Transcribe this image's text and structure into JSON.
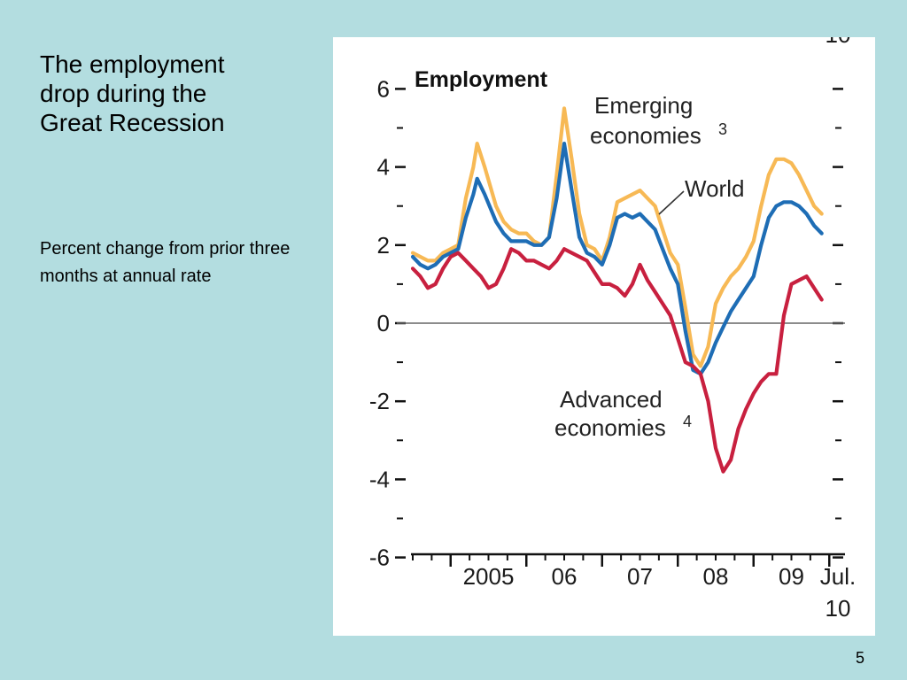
{
  "slide": {
    "title": "The employment\ndrop during the\nGreat Recession",
    "subtitle": "Percent change from prior three months at annual rate",
    "page_number": "5"
  },
  "chart_data": {
    "type": "line",
    "title": "Employment",
    "ylim": [
      -6,
      6
    ],
    "xlim": [
      2004.5,
      2010.5
    ],
    "y_ticks": [
      {
        "value": 6,
        "label": "6"
      },
      {
        "value": 4,
        "label": "4"
      },
      {
        "value": 2,
        "label": "2"
      },
      {
        "value": 0,
        "label": "0"
      },
      {
        "value": -2,
        "label": "-2"
      },
      {
        "value": -4,
        "label": "-4"
      },
      {
        "value": -6,
        "label": "-6"
      }
    ],
    "x_ticks": [
      {
        "value": 2005,
        "label": "2005"
      },
      {
        "value": 2006,
        "label": "06"
      },
      {
        "value": 2007,
        "label": "07"
      },
      {
        "value": 2008,
        "label": "08"
      },
      {
        "value": 2009,
        "label": "09"
      },
      {
        "value": 2010,
        "label": "Jul.",
        "label2": "10"
      }
    ],
    "top_right_label": "10",
    "zero_line": true,
    "grid": false,
    "series": [
      {
        "name": "Emerging economies",
        "superscript": "3",
        "label": "Emerging",
        "label2": "economies",
        "color": "#f7b955",
        "points": [
          [
            2004.5,
            1.8
          ],
          [
            2004.6,
            1.7
          ],
          [
            2004.7,
            1.6
          ],
          [
            2004.8,
            1.6
          ],
          [
            2004.9,
            1.8
          ],
          [
            2005.0,
            1.9
          ],
          [
            2005.1,
            2.0
          ],
          [
            2005.2,
            3.2
          ],
          [
            2005.3,
            4.0
          ],
          [
            2005.35,
            4.6
          ],
          [
            2005.45,
            4.0
          ],
          [
            2005.6,
            3.0
          ],
          [
            2005.7,
            2.6
          ],
          [
            2005.8,
            2.4
          ],
          [
            2005.9,
            2.3
          ],
          [
            2006.0,
            2.3
          ],
          [
            2006.1,
            2.1
          ],
          [
            2006.2,
            2.0
          ],
          [
            2006.3,
            2.2
          ],
          [
            2006.4,
            3.8
          ],
          [
            2006.5,
            5.5
          ],
          [
            2006.6,
            4.2
          ],
          [
            2006.7,
            2.8
          ],
          [
            2006.8,
            2.0
          ],
          [
            2006.9,
            1.9
          ],
          [
            2007.0,
            1.6
          ],
          [
            2007.1,
            2.2
          ],
          [
            2007.2,
            3.1
          ],
          [
            2007.3,
            3.2
          ],
          [
            2007.4,
            3.3
          ],
          [
            2007.5,
            3.4
          ],
          [
            2007.6,
            3.2
          ],
          [
            2007.7,
            3.0
          ],
          [
            2007.8,
            2.4
          ],
          [
            2007.9,
            1.8
          ],
          [
            2008.0,
            1.5
          ],
          [
            2008.1,
            0.4
          ],
          [
            2008.2,
            -0.8
          ],
          [
            2008.3,
            -1.1
          ],
          [
            2008.4,
            -0.6
          ],
          [
            2008.5,
            0.5
          ],
          [
            2008.6,
            0.9
          ],
          [
            2008.7,
            1.2
          ],
          [
            2008.8,
            1.4
          ],
          [
            2008.9,
            1.7
          ],
          [
            2009.0,
            2.1
          ],
          [
            2009.1,
            3.0
          ],
          [
            2009.2,
            3.8
          ],
          [
            2009.3,
            4.2
          ],
          [
            2009.4,
            4.2
          ],
          [
            2009.5,
            4.1
          ],
          [
            2009.6,
            3.8
          ],
          [
            2009.7,
            3.4
          ],
          [
            2009.8,
            3.0
          ],
          [
            2009.9,
            2.8
          ]
        ]
      },
      {
        "name": "World",
        "superscript": "",
        "label": "World",
        "label2": "",
        "color": "#1e6db5",
        "points": [
          [
            2004.5,
            1.7
          ],
          [
            2004.6,
            1.5
          ],
          [
            2004.7,
            1.4
          ],
          [
            2004.8,
            1.5
          ],
          [
            2004.9,
            1.7
          ],
          [
            2005.0,
            1.8
          ],
          [
            2005.1,
            1.9
          ],
          [
            2005.2,
            2.7
          ],
          [
            2005.3,
            3.3
          ],
          [
            2005.35,
            3.7
          ],
          [
            2005.45,
            3.3
          ],
          [
            2005.6,
            2.6
          ],
          [
            2005.7,
            2.3
          ],
          [
            2005.8,
            2.1
          ],
          [
            2005.9,
            2.1
          ],
          [
            2006.0,
            2.1
          ],
          [
            2006.1,
            2.0
          ],
          [
            2006.2,
            2.0
          ],
          [
            2006.3,
            2.2
          ],
          [
            2006.4,
            3.2
          ],
          [
            2006.5,
            4.6
          ],
          [
            2006.6,
            3.4
          ],
          [
            2006.7,
            2.2
          ],
          [
            2006.8,
            1.8
          ],
          [
            2006.9,
            1.7
          ],
          [
            2007.0,
            1.5
          ],
          [
            2007.1,
            2.0
          ],
          [
            2007.2,
            2.7
          ],
          [
            2007.3,
            2.8
          ],
          [
            2007.4,
            2.7
          ],
          [
            2007.5,
            2.8
          ],
          [
            2007.6,
            2.6
          ],
          [
            2007.7,
            2.4
          ],
          [
            2007.8,
            1.9
          ],
          [
            2007.9,
            1.4
          ],
          [
            2008.0,
            1.0
          ],
          [
            2008.1,
            -0.2
          ],
          [
            2008.2,
            -1.2
          ],
          [
            2008.3,
            -1.3
          ],
          [
            2008.4,
            -1.0
          ],
          [
            2008.5,
            -0.5
          ],
          [
            2008.6,
            -0.1
          ],
          [
            2008.7,
            0.3
          ],
          [
            2008.8,
            0.6
          ],
          [
            2008.9,
            0.9
          ],
          [
            2009.0,
            1.2
          ],
          [
            2009.1,
            2.0
          ],
          [
            2009.2,
            2.7
          ],
          [
            2009.3,
            3.0
          ],
          [
            2009.4,
            3.1
          ],
          [
            2009.5,
            3.1
          ],
          [
            2009.6,
            3.0
          ],
          [
            2009.7,
            2.8
          ],
          [
            2009.8,
            2.5
          ],
          [
            2009.9,
            2.3
          ]
        ]
      },
      {
        "name": "Advanced economies",
        "superscript": "4",
        "label": "Advanced",
        "label2": "economies",
        "color": "#c8203f",
        "points": [
          [
            2004.5,
            1.4
          ],
          [
            2004.6,
            1.2
          ],
          [
            2004.7,
            0.9
          ],
          [
            2004.8,
            1.0
          ],
          [
            2004.9,
            1.4
          ],
          [
            2005.0,
            1.7
          ],
          [
            2005.1,
            1.8
          ],
          [
            2005.2,
            1.6
          ],
          [
            2005.3,
            1.4
          ],
          [
            2005.4,
            1.2
          ],
          [
            2005.5,
            0.9
          ],
          [
            2005.6,
            1.0
          ],
          [
            2005.7,
            1.4
          ],
          [
            2005.8,
            1.9
          ],
          [
            2005.9,
            1.8
          ],
          [
            2006.0,
            1.6
          ],
          [
            2006.1,
            1.6
          ],
          [
            2006.2,
            1.5
          ],
          [
            2006.3,
            1.4
          ],
          [
            2006.4,
            1.6
          ],
          [
            2006.5,
            1.9
          ],
          [
            2006.6,
            1.8
          ],
          [
            2006.7,
            1.7
          ],
          [
            2006.8,
            1.6
          ],
          [
            2006.9,
            1.3
          ],
          [
            2007.0,
            1.0
          ],
          [
            2007.1,
            1.0
          ],
          [
            2007.2,
            0.9
          ],
          [
            2007.3,
            0.7
          ],
          [
            2007.4,
            1.0
          ],
          [
            2007.5,
            1.5
          ],
          [
            2007.6,
            1.1
          ],
          [
            2007.7,
            0.8
          ],
          [
            2007.8,
            0.5
          ],
          [
            2007.9,
            0.2
          ],
          [
            2008.0,
            -0.4
          ],
          [
            2008.1,
            -1.0
          ],
          [
            2008.2,
            -1.1
          ],
          [
            2008.3,
            -1.3
          ],
          [
            2008.4,
            -2.0
          ],
          [
            2008.5,
            -3.2
          ],
          [
            2008.6,
            -3.8
          ],
          [
            2008.7,
            -3.5
          ],
          [
            2008.8,
            -2.7
          ],
          [
            2008.9,
            -2.2
          ],
          [
            2009.0,
            -1.8
          ],
          [
            2009.1,
            -1.5
          ],
          [
            2009.2,
            -1.3
          ],
          [
            2009.3,
            -1.3
          ],
          [
            2009.4,
            0.2
          ],
          [
            2009.5,
            1.0
          ],
          [
            2009.6,
            1.1
          ],
          [
            2009.7,
            1.2
          ],
          [
            2009.8,
            0.9
          ],
          [
            2009.9,
            0.6
          ]
        ]
      }
    ]
  }
}
